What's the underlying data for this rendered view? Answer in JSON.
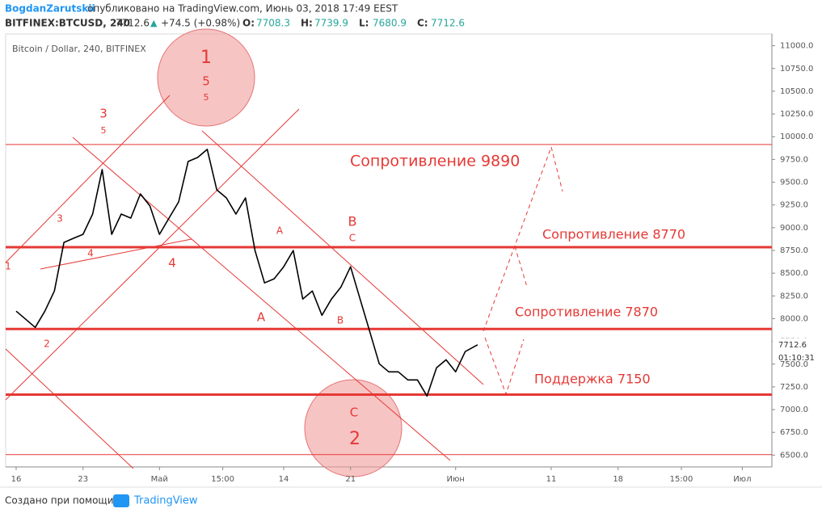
{
  "header": {
    "author": "BogdanZarutskii",
    "published": "опубликовано на TradingView.com, Июнь 03, 2018 17:49 EEST",
    "symbol": "BITFINEX:BTCUSD, 240",
    "last": "7712.6",
    "arrow": "▲",
    "change": "+74.5 (+0.98%)",
    "ohlc": [
      {
        "label": "O:",
        "value": "7708.3"
      },
      {
        "label": "H:",
        "value": "7739.9"
      },
      {
        "label": "L:",
        "value": "7680.9"
      },
      {
        "label": "C:",
        "value": "7712.6"
      }
    ]
  },
  "chart_data": {
    "type": "line",
    "title": "Bitcoin / Dollar, 240, BITFINEX",
    "color": "#000000",
    "x": [
      0,
      1,
      2,
      3,
      4,
      5,
      6,
      7,
      8,
      9,
      10,
      11,
      12,
      13,
      14,
      15,
      16,
      17,
      18,
      19,
      20,
      21,
      22,
      23,
      24,
      25,
      26,
      27,
      28,
      29,
      30,
      31,
      32,
      33,
      34,
      35,
      36,
      37,
      38,
      39,
      40,
      41,
      42,
      43,
      44,
      45,
      46,
      47,
      48.3
    ],
    "values": [
      8082,
      7993,
      7904,
      8082,
      8304,
      8838,
      8883,
      8927,
      9150,
      9639,
      8927,
      9150,
      9105,
      9372,
      9238,
      8927,
      9105,
      9283,
      9728,
      9772,
      9861,
      9416,
      9327,
      9150,
      9327,
      8749,
      8393,
      8438,
      8571,
      8749,
      8215,
      8304,
      8037,
      8215,
      8349,
      8571,
      8215,
      7860,
      7504,
      7415,
      7415,
      7326,
      7326,
      7149,
      7460,
      7548,
      7415,
      7638,
      7712.6
    ],
    "xlim": [
      -1.1,
      79.1
    ],
    "ylim": [
      6370,
      11130
    ],
    "xticks": [
      {
        "value": 0,
        "label": "16"
      },
      {
        "value": 7,
        "label": "23"
      },
      {
        "value": 15,
        "label": "Май"
      },
      {
        "value": 21.625,
        "label": "15:00"
      },
      {
        "value": 28,
        "label": "14"
      },
      {
        "value": 35,
        "label": "21"
      },
      {
        "value": 46,
        "label": "Июн"
      },
      {
        "value": 56,
        "label": "11"
      },
      {
        "value": 63,
        "label": "18"
      },
      {
        "value": 69.625,
        "label": "15:00"
      },
      {
        "value": 76,
        "label": "Июл"
      }
    ],
    "yticks": [
      {
        "value": 6500,
        "label": "6500.0"
      },
      {
        "value": 6750,
        "label": "6750.0"
      },
      {
        "value": 7000,
        "label": "7000.0"
      },
      {
        "value": 7250,
        "label": "7250.0"
      },
      {
        "value": 7500,
        "label": "7500.0"
      },
      {
        "value": 7750,
        "label": "7750.0"
      },
      {
        "value": 8000,
        "label": "8000.0"
      },
      {
        "value": 8250,
        "label": "8250.0"
      },
      {
        "value": 8500,
        "label": "8500.0"
      },
      {
        "value": 8750,
        "label": "8750.0"
      },
      {
        "value": 9000,
        "label": "9000.0"
      },
      {
        "value": 9250,
        "label": "9250.0"
      },
      {
        "value": 9500,
        "label": "9500.0"
      },
      {
        "value": 9750,
        "label": "9750.0"
      },
      {
        "value": 10000,
        "label": "10000.0"
      },
      {
        "value": 10250,
        "label": "10250.0"
      },
      {
        "value": 10500,
        "label": "10500.0"
      },
      {
        "value": 10750,
        "label": "10750.0"
      },
      {
        "value": 11000,
        "label": "11000.0"
      }
    ],
    "price_tag": {
      "value": 7712.6,
      "label": "7712.6"
    },
    "countdown": "01:10:31",
    "level_color": "#e53935",
    "levels": [
      {
        "value": 9915,
        "label": "Сопротивление 9890"
      },
      {
        "value": 8785,
        "label": "Сопротивление 8770"
      },
      {
        "value": 7886,
        "label": "Сопротивление 7870"
      },
      {
        "value": 7165,
        "label": "Поддержка 7150"
      },
      {
        "value": 6505
      }
    ],
    "wave_labels": [
      "1",
      "5",
      "5",
      "3",
      "5",
      "3",
      "4",
      "4",
      "1",
      "2",
      "A",
      "B",
      "C",
      "A",
      "B",
      "C",
      "2"
    ]
  },
  "footer": {
    "text": "Создано при помощи",
    "brand": "TradingView"
  }
}
